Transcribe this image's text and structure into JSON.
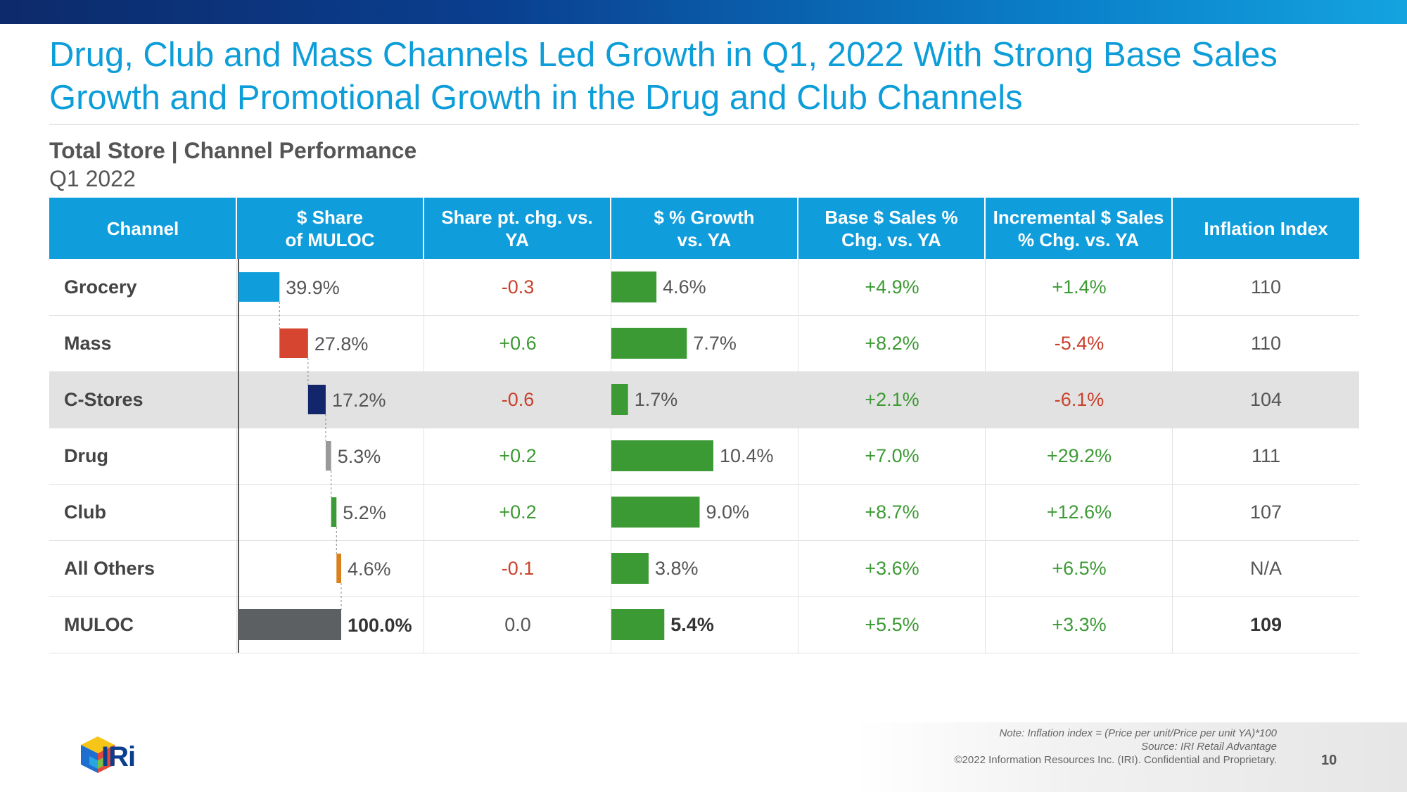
{
  "title": "Drug, Club and Mass Channels Led Growth in Q1, 2022 With Strong Base Sales Growth and Promotional Growth in the Drug and Club Channels",
  "subtitle": "Total Store | Channel Performance",
  "period": "Q1 2022",
  "headers": {
    "channel": "Channel",
    "share": "$ Share\nof MULOC",
    "share_chg": "Share pt. chg. vs.\nYA",
    "growth": "$ % Growth\nvs. YA",
    "base": "Base $ Sales %\nChg. vs. YA",
    "incremental": "Incremental $ Sales\n% Chg. vs. YA",
    "inflation": "Inflation Index"
  },
  "rows": [
    {
      "channel": "Grocery",
      "share_label": "39.9%",
      "share_chg": "-0.3",
      "growth_label": "4.6%",
      "base": "+4.9%",
      "incremental": "+1.4%",
      "inflation": "110"
    },
    {
      "channel": "Mass",
      "share_label": "27.8%",
      "share_chg": "+0.6",
      "growth_label": "7.7%",
      "base": "+8.2%",
      "incremental": "-5.4%",
      "inflation": "110"
    },
    {
      "channel": "C-Stores",
      "share_label": "17.2%",
      "share_chg": "-0.6",
      "growth_label": "1.7%",
      "base": "+2.1%",
      "incremental": "-6.1%",
      "inflation": "104"
    },
    {
      "channel": "Drug",
      "share_label": "5.3%",
      "share_chg": "+0.2",
      "growth_label": "10.4%",
      "base": "+7.0%",
      "incremental": "+29.2%",
      "inflation": "111"
    },
    {
      "channel": "Club",
      "share_label": "5.2%",
      "share_chg": "+0.2",
      "growth_label": "9.0%",
      "base": "+8.7%",
      "incremental": "+12.6%",
      "inflation": "107"
    },
    {
      "channel": "All Others",
      "share_label": "4.6%",
      "share_chg": "-0.1",
      "growth_label": "3.8%",
      "base": "+3.6%",
      "incremental": "+6.5%",
      "inflation": "N/A"
    },
    {
      "channel": "MULOC",
      "share_label": "100.0%",
      "share_chg": "0.0",
      "growth_label": "5.4%",
      "base": "+5.5%",
      "incremental": "+3.3%",
      "inflation": "109"
    }
  ],
  "chart_data": [
    {
      "type": "bar",
      "title": "$ Share of MULOC",
      "style": "waterfall",
      "categories": [
        "Grocery",
        "Mass",
        "C-Stores",
        "Drug",
        "Club",
        "All Others",
        "MULOC"
      ],
      "values": [
        39.9,
        27.8,
        17.2,
        5.3,
        5.2,
        4.6,
        100.0
      ],
      "colors": [
        "#0f9ddb",
        "#d6452f",
        "#13266b",
        "#999999",
        "#3c9a34",
        "#d9821d",
        "#5d6063"
      ],
      "xlim": [
        0,
        100
      ]
    },
    {
      "type": "bar",
      "title": "$ % Growth vs. YA",
      "categories": [
        "Grocery",
        "Mass",
        "C-Stores",
        "Drug",
        "Club",
        "All Others",
        "MULOC"
      ],
      "values": [
        4.6,
        7.7,
        1.7,
        10.4,
        9.0,
        3.8,
        5.4
      ],
      "color": "#3c9a34",
      "xlim": [
        0,
        10.4
      ]
    }
  ],
  "footnote": {
    "note": "Note: Inflation index = (Price per unit/Price per unit YA)*100",
    "source": "Source: IRI Retail Advantage",
    "copyright": "©2022 Information Resources Inc. (IRI). Confidential and Proprietary."
  },
  "page_number": "10",
  "logo_text": "IRi"
}
